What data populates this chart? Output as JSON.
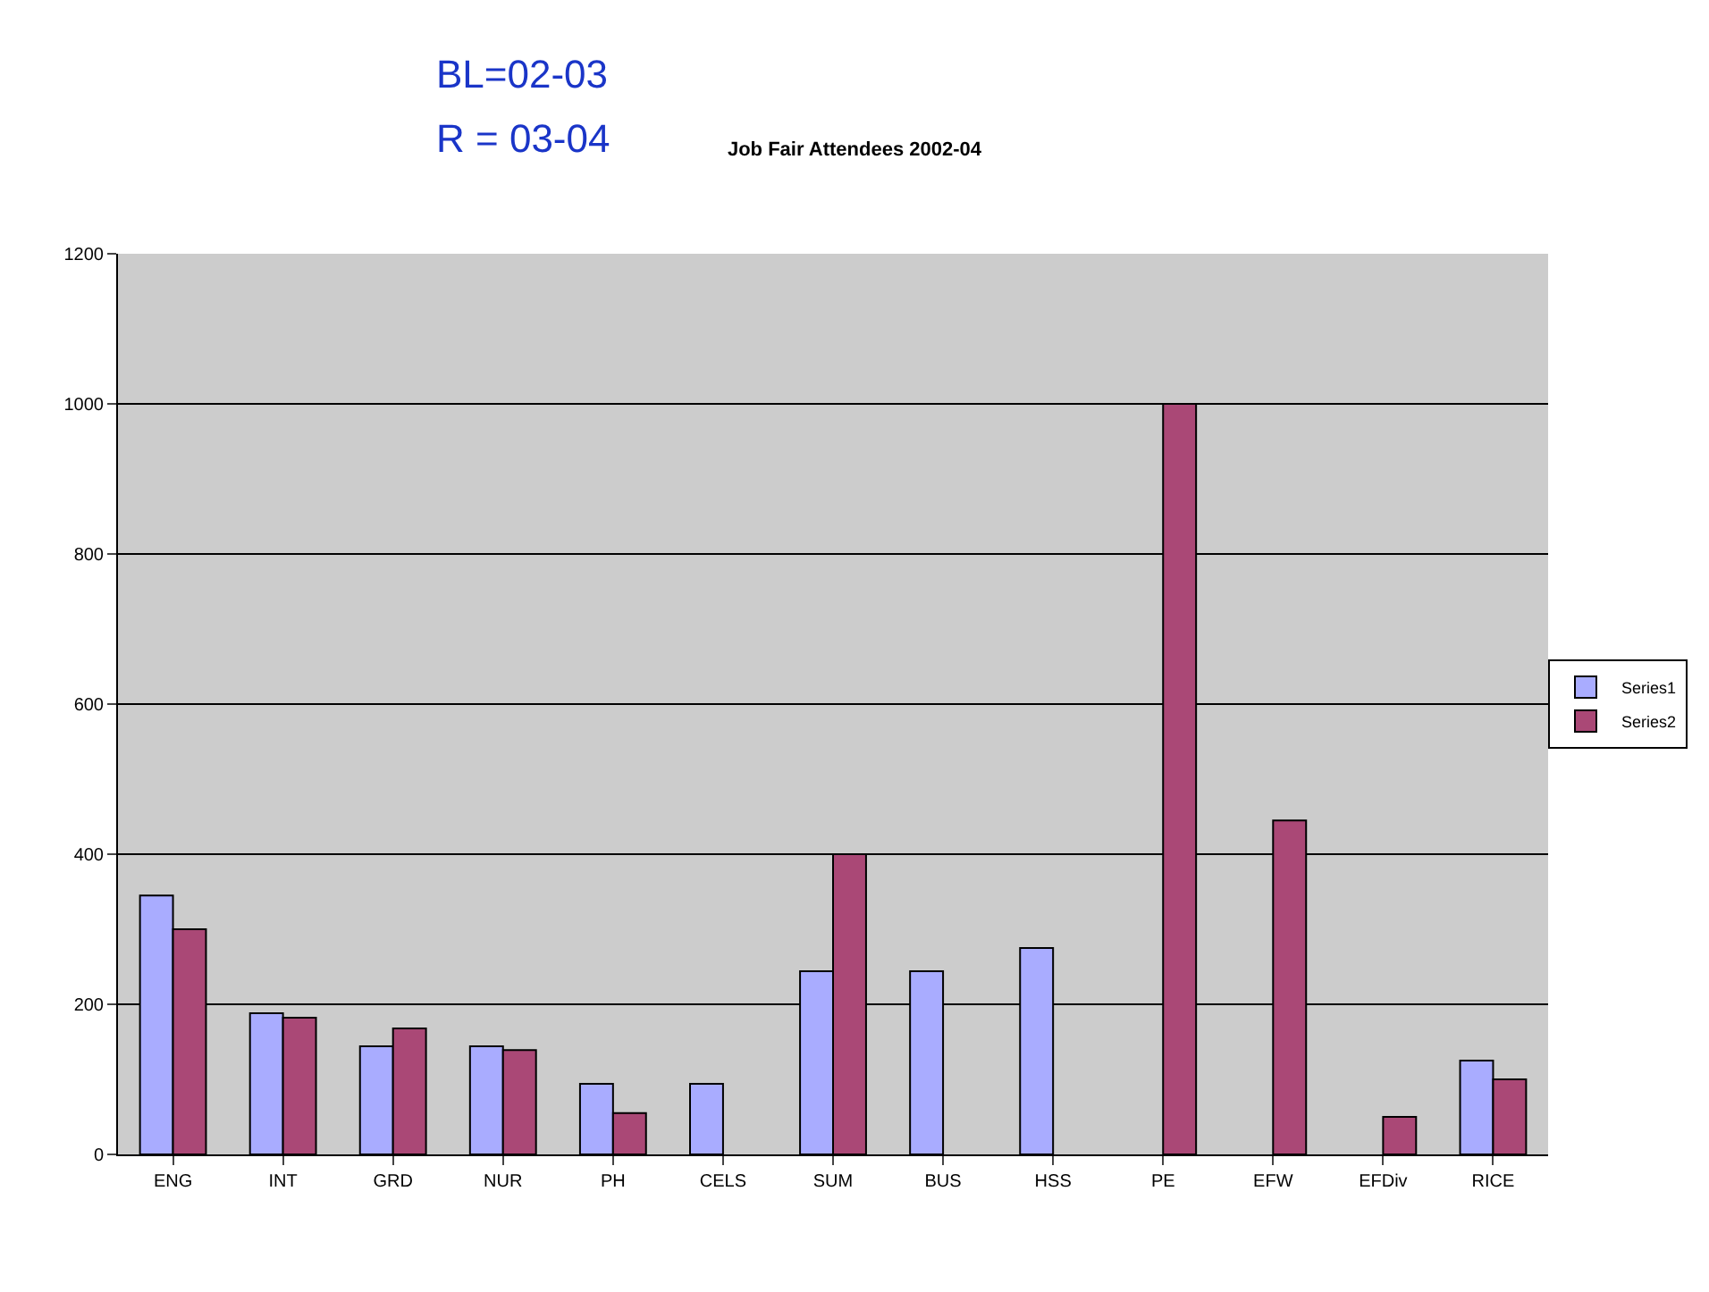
{
  "chart_data": {
    "type": "bar",
    "title": "Job Fair Attendees 2002-04",
    "annotations": [
      "BL=02-03",
      "R = 03-04"
    ],
    "categories": [
      "ENG",
      "INT",
      "GRD",
      "NUR",
      "PH",
      "CELS",
      "SUM",
      "BUS",
      "HSS",
      "PE",
      "EFW",
      "EFDiv",
      "RICE"
    ],
    "series": [
      {
        "name": "Series1",
        "color": "#a9acff",
        "values": [
          345,
          188,
          144,
          144,
          94,
          94,
          244,
          244,
          275,
          null,
          null,
          null,
          125
        ]
      },
      {
        "name": "Series2",
        "color": "#aa4876",
        "values": [
          300,
          182,
          168,
          139,
          55,
          null,
          400,
          null,
          null,
          1000,
          445,
          50,
          100
        ]
      }
    ],
    "ylim": [
      0,
      1200
    ],
    "yticks": [
      0,
      200,
      400,
      600,
      800,
      1000,
      1200
    ],
    "grid": "y",
    "legend": "right"
  }
}
